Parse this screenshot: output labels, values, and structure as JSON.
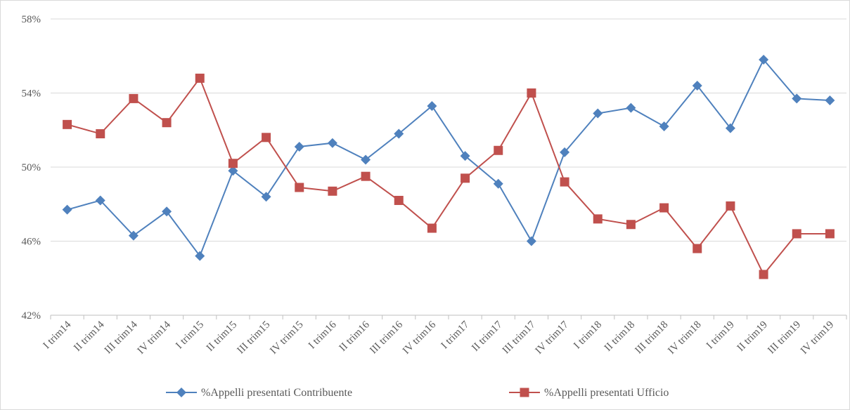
{
  "chart_data": {
    "type": "line",
    "categories": [
      "I trim14",
      "II trim14",
      "III trim14",
      "IV trim14",
      "I trim15",
      "II trim15",
      "III trim15",
      "IV trim15",
      "I trim16",
      "II trim16",
      "III trim16",
      "IV trim16",
      "I trim17",
      "II trim17",
      "III trim17",
      "IV trim17",
      "I trim18",
      "II trim18",
      "III trim18",
      "IV trim18",
      "I trim19",
      "II trim19",
      "III trim19",
      "IV trim19"
    ],
    "series": [
      {
        "name": "%Appelli presentati Contribuente",
        "color": "#4f81bd",
        "marker": "diamond",
        "values": [
          47.7,
          48.2,
          46.3,
          47.6,
          45.2,
          49.8,
          48.4,
          51.1,
          51.3,
          50.4,
          51.8,
          53.3,
          50.6,
          49.1,
          46.0,
          50.8,
          52.9,
          53.2,
          52.2,
          54.4,
          52.1,
          55.8,
          53.7,
          53.6
        ]
      },
      {
        "name": "%Appelli presentati Ufficio",
        "color": "#c0504d",
        "marker": "square",
        "values": [
          52.3,
          51.8,
          53.7,
          52.4,
          54.8,
          50.2,
          51.6,
          48.9,
          48.7,
          49.5,
          48.2,
          46.7,
          49.4,
          50.9,
          54.0,
          49.2,
          47.2,
          46.9,
          47.8,
          45.6,
          47.9,
          44.2,
          46.4,
          46.4
        ]
      }
    ],
    "ylim": [
      42,
      58
    ],
    "yticks": [
      {
        "value": 42,
        "label": "42%"
      },
      {
        "value": 46,
        "label": "46%"
      },
      {
        "value": 50,
        "label": "50%"
      },
      {
        "value": 54,
        "label": "54%"
      },
      {
        "value": 58,
        "label": "58%"
      }
    ],
    "grid": true,
    "legend": "bottom"
  }
}
